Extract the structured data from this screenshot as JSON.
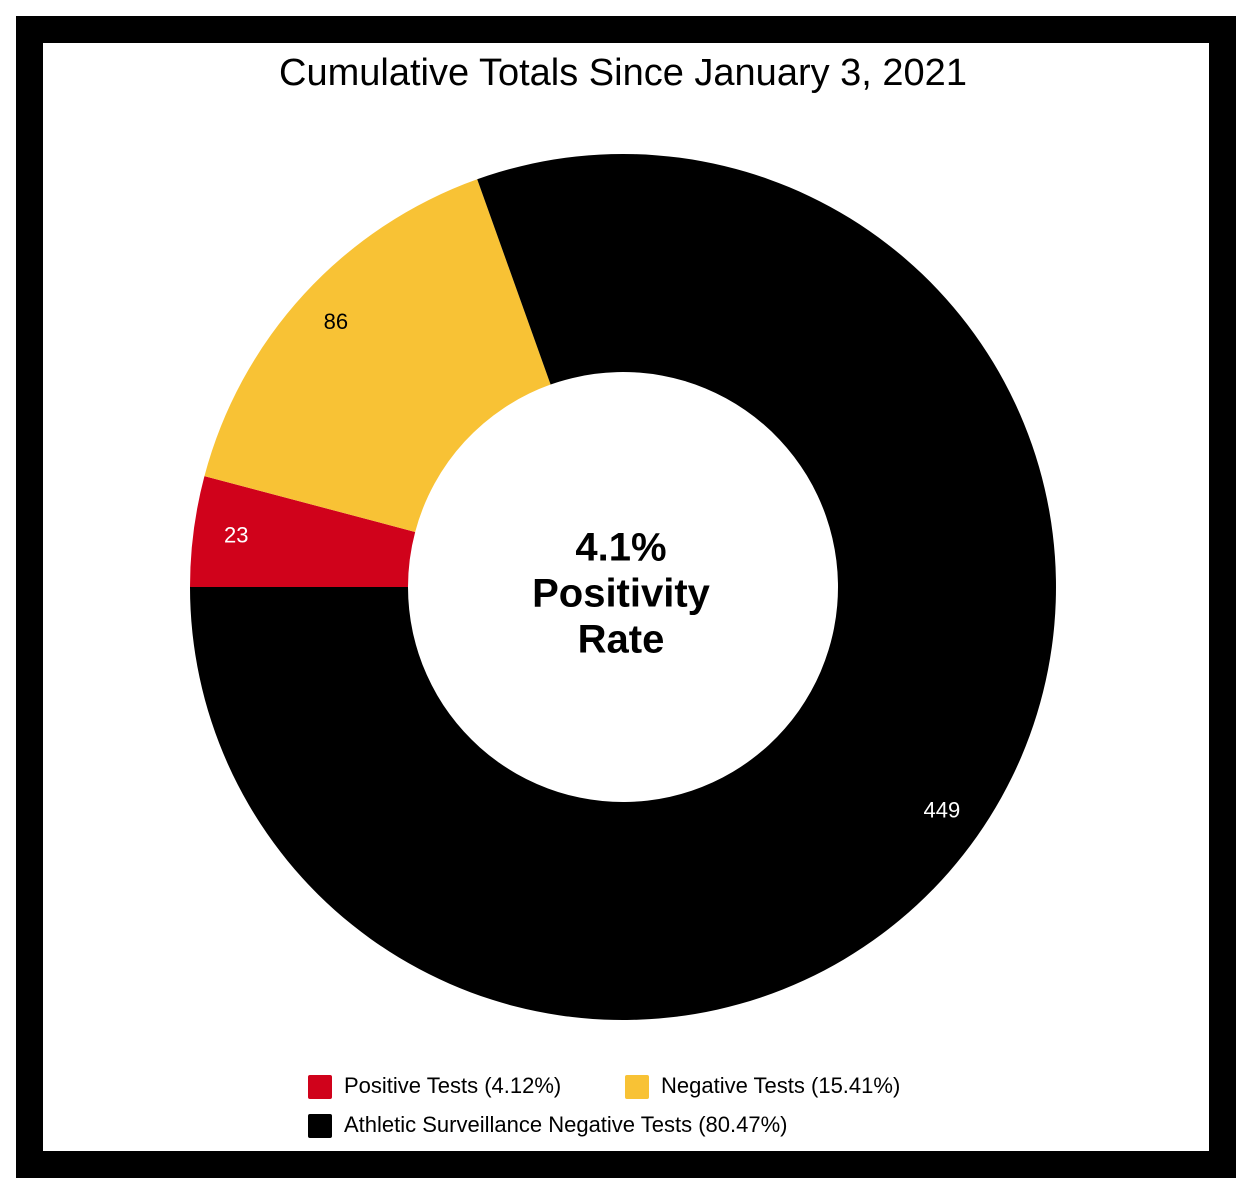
{
  "chart_data": {
    "type": "donut",
    "title": "Cumulative Totals Since January 3, 2021",
    "categories": [
      "Positive Tests (4.12%)",
      "Negative Tests (15.41%)",
      "Athletic Surveillance Negative Tests (80.47%)"
    ],
    "values": [
      23,
      86,
      449
    ],
    "colors": [
      "#d0021b",
      "#f8c235",
      "#000000"
    ],
    "center_text": [
      "4.1%",
      "Positivity",
      "Rate"
    ]
  }
}
